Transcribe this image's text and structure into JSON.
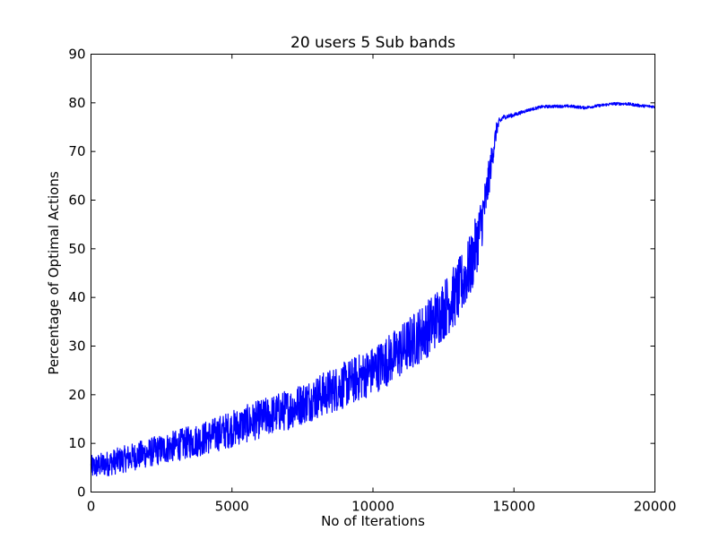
{
  "chart_data": {
    "type": "line",
    "title": "20 users 5 Sub bands",
    "xlabel": "No of Iterations",
    "ylabel": "Percentage of Optimal Actions",
    "xlim": [
      0,
      20000
    ],
    "ylim": [
      0,
      90
    ],
    "xticks": [
      0,
      5000,
      10000,
      15000,
      20000
    ],
    "yticks": [
      0,
      10,
      20,
      30,
      40,
      50,
      60,
      70,
      80,
      90
    ],
    "grid": false,
    "legend": "none",
    "series": [
      {
        "color": "#0000ff",
        "x": [
          0,
          1000,
          2000,
          3000,
          4000,
          5000,
          6000,
          7000,
          8000,
          9000,
          10000,
          11000,
          12000,
          13000,
          13500,
          13800,
          14000,
          14200,
          14400,
          14600,
          15000,
          15500,
          16000,
          16500,
          17000,
          17500,
          18000,
          18500,
          19000,
          19500,
          20000
        ],
        "y_mean": [
          5,
          6.5,
          8,
          9.5,
          11,
          13,
          15,
          17,
          19.5,
          22,
          25,
          29,
          34,
          41,
          47,
          54,
          60,
          68,
          75,
          77,
          77.5,
          78.5,
          79.2,
          79.3,
          79.3,
          79.0,
          79.4,
          79.8,
          79.8,
          79.4,
          79.2
        ],
        "noise_amplitude": [
          2.5,
          2.7,
          3.0,
          3.2,
          3.5,
          3.8,
          4.0,
          4.2,
          4.5,
          4.8,
          5.0,
          5.5,
          6.0,
          6.5,
          6.5,
          6.0,
          5.0,
          3.0,
          1.5,
          0.5,
          0.4,
          0.3,
          0.3,
          0.3,
          0.3,
          0.3,
          0.3,
          0.3,
          0.3,
          0.3,
          0.3
        ]
      }
    ]
  }
}
